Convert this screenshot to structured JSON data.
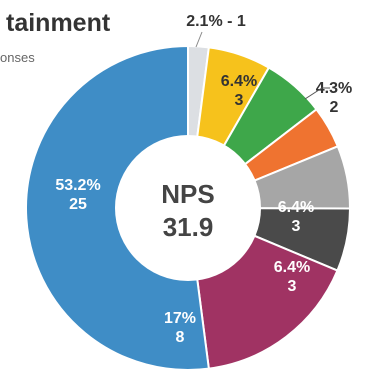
{
  "chart_data": {
    "type": "pie",
    "title": "tainment",
    "subtitle": "onses",
    "center": {
      "label": "NPS",
      "value": "31.9"
    },
    "slices": [
      {
        "pct": 2.1,
        "count": 1,
        "label_pct": "2.1%",
        "label_count": "1",
        "color": "#dcdfe3"
      },
      {
        "pct": 6.4,
        "count": 3,
        "label_pct": "6.4%",
        "label_count": "3",
        "color": "#f6c21c"
      },
      {
        "pct": 6.4,
        "count": 3,
        "label_pct": "",
        "label_count": "",
        "color": "#3ea74a"
      },
      {
        "pct": 4.3,
        "count": 2,
        "label_pct": "4.3%",
        "label_count": "2",
        "color": "#ef7330"
      },
      {
        "pct": 6.4,
        "count": 3,
        "label_pct": "6.4%",
        "label_count": "3",
        "color": "#a6a6a6"
      },
      {
        "pct": 6.4,
        "count": 3,
        "label_pct": "6.4%",
        "label_count": "3",
        "color": "#4a4a4a"
      },
      {
        "pct": 17,
        "count": 8,
        "label_pct": "17%",
        "label_count": "8",
        "color": "#a03363"
      },
      {
        "pct": 53.2,
        "count": 25,
        "label_pct": "53.2%",
        "label_count": "25",
        "color": "#3f8dc6"
      }
    ]
  }
}
